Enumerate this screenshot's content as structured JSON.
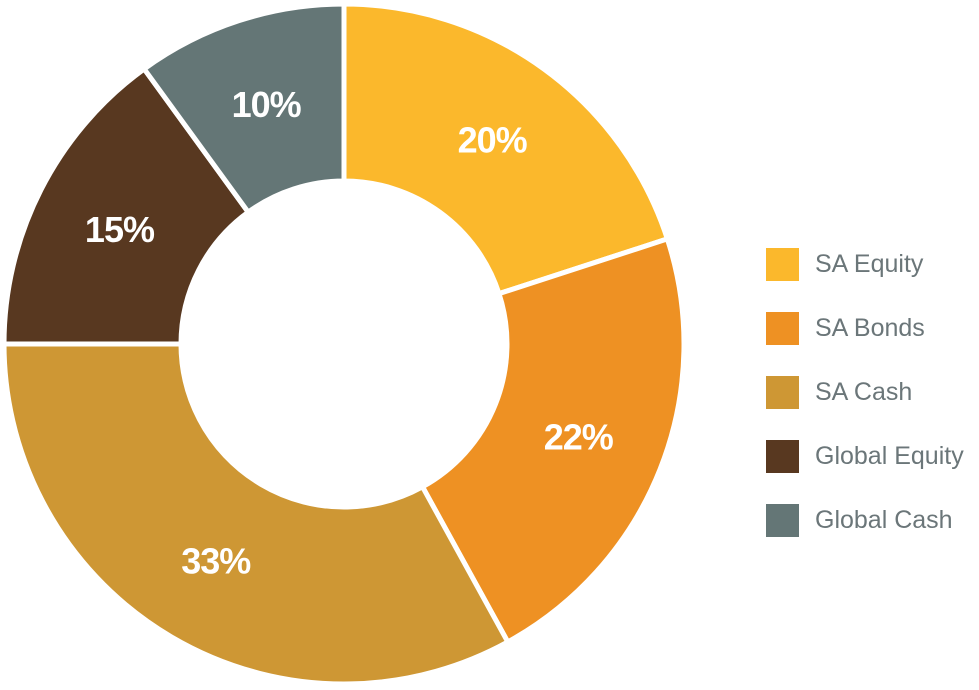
{
  "chart_data": {
    "type": "pie",
    "variant": "donut",
    "title": "",
    "legend_position": "right",
    "slices": [
      {
        "label": "SA Equity",
        "value": 20,
        "display": "20%",
        "color": "#FBB82C"
      },
      {
        "label": "SA Bonds",
        "value": 22,
        "display": "22%",
        "color": "#EE9123"
      },
      {
        "label": "SA Cash",
        "value": 33,
        "display": "33%",
        "color": "#CE9734"
      },
      {
        "label": "Global Equity",
        "value": 15,
        "display": "15%",
        "color": "#583820"
      },
      {
        "label": "Global Cash",
        "value": 10,
        "display": "10%",
        "color": "#647676"
      }
    ]
  }
}
